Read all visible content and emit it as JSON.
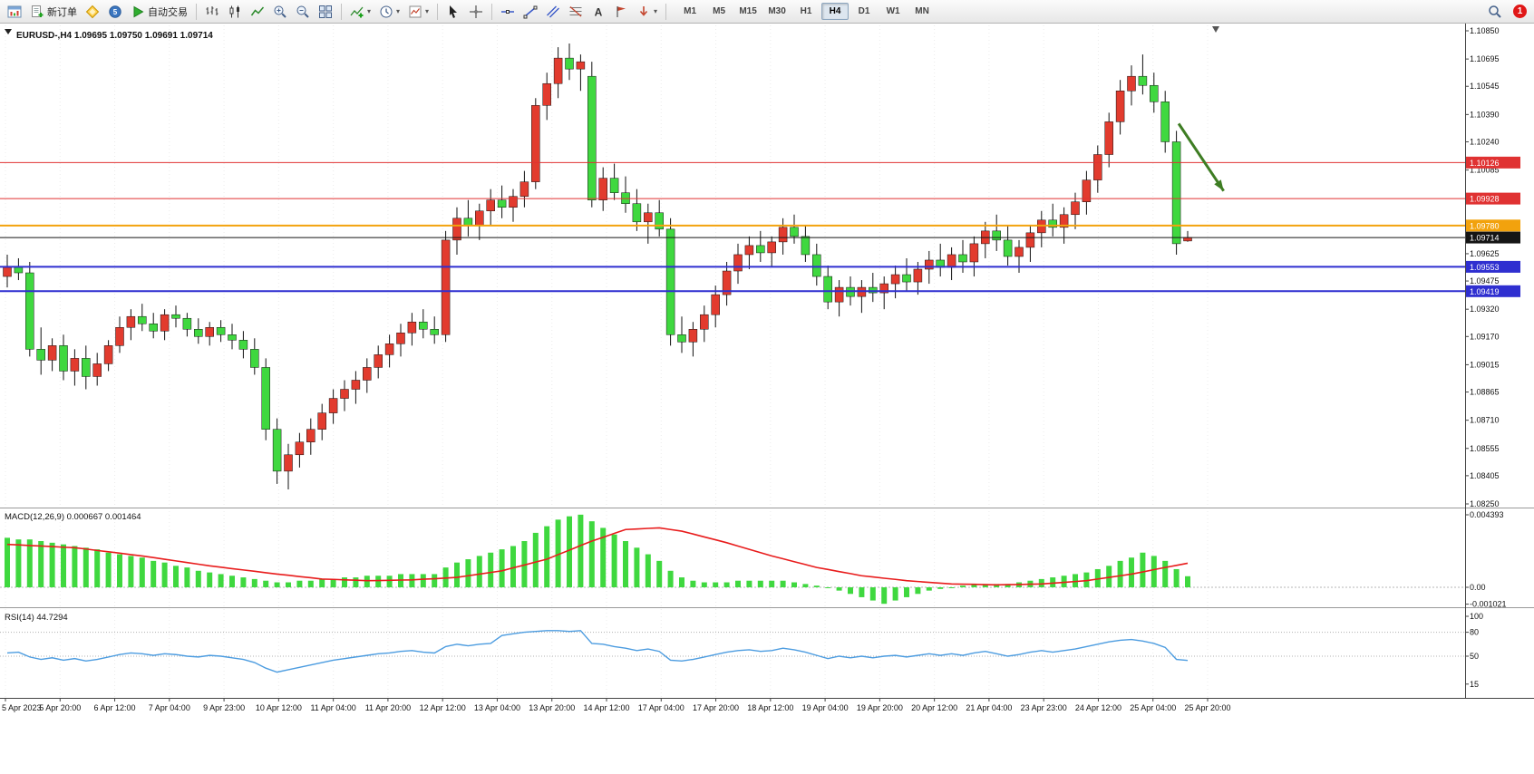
{
  "toolbar": {
    "new_order_label": "新订单",
    "autotrading_label": "自动交易",
    "timeframes": [
      "M1",
      "M5",
      "M15",
      "M30",
      "H1",
      "H4",
      "D1",
      "W1",
      "MN"
    ],
    "active_timeframe": "H4",
    "notification_count": "1"
  },
  "chart_data": {
    "type": "candlestick",
    "title": {
      "symbol_timeframe": "EURUSD-,H4",
      "ohlc": [
        "1.09695",
        "1.09750",
        "1.09691",
        "1.09714"
      ]
    },
    "colors": {
      "up": "#e23b2e",
      "down": "#3fd83f"
    },
    "y_axis": {
      "min": 1.0825,
      "max": 1.1085,
      "tick_labels": [
        "1.10850",
        "1.10695",
        "1.10545",
        "1.10390",
        "1.10240",
        "1.10085",
        "1.09935",
        "1.09780",
        "1.09625",
        "1.09475",
        "1.09320",
        "1.09170",
        "1.09015",
        "1.08865",
        "1.08710",
        "1.08555",
        "1.08405",
        "1.08250"
      ]
    },
    "x_labels": [
      "5 Apr 2023",
      "5 Apr 20:00",
      "6 Apr 12:00",
      "7 Apr 04:00",
      "9 Apr 23:00",
      "10 Apr 12:00",
      "11 Apr 04:00",
      "11 Apr 20:00",
      "12 Apr 12:00",
      "13 Apr 04:00",
      "13 Apr 20:00",
      "14 Apr 12:00",
      "17 Apr 04:00",
      "17 Apr 20:00",
      "18 Apr 12:00",
      "19 Apr 04:00",
      "19 Apr 20:00",
      "20 Apr 12:00",
      "21 Apr 04:00",
      "23 Apr 23:00",
      "24 Apr 12:00",
      "25 Apr 04:00",
      "25 Apr 20:00"
    ],
    "hlines": [
      {
        "label": "1.10126",
        "price": 1.10126,
        "color": "#e03232",
        "width": 1,
        "name": "resistance-line-1"
      },
      {
        "label": "1.09928",
        "price": 1.09928,
        "color": "#e03232",
        "width": 1,
        "name": "resistance-line-2"
      },
      {
        "label": "1.09780",
        "price": 1.0978,
        "color": "#f2a20d",
        "width": 2,
        "name": "pivot-line"
      },
      {
        "label": "1.09714",
        "price": 1.09714,
        "color": "#151515",
        "width": 1,
        "name": "current-price-line"
      },
      {
        "label": "1.09553",
        "price": 1.09553,
        "color": "#2f2fd0",
        "width": 2,
        "name": "support-line-1"
      },
      {
        "label": "1.09419",
        "price": 1.09419,
        "color": "#2f2fd0",
        "width": 2,
        "name": "support-line-2"
      }
    ],
    "candles": [
      [
        1.095,
        1.0962,
        1.0944,
        1.0955
      ],
      [
        1.0955,
        1.096,
        1.0948,
        1.0952
      ],
      [
        1.0952,
        1.0958,
        1.0906,
        1.091
      ],
      [
        1.091,
        1.0922,
        1.0896,
        1.0904
      ],
      [
        1.0904,
        1.0916,
        1.0898,
        1.0912
      ],
      [
        1.0912,
        1.0918,
        1.0893,
        1.0898
      ],
      [
        1.0898,
        1.091,
        1.089,
        1.0905
      ],
      [
        1.0905,
        1.0912,
        1.0888,
        1.0895
      ],
      [
        1.0895,
        1.0908,
        1.089,
        1.0902
      ],
      [
        1.0902,
        1.0915,
        1.0898,
        1.0912
      ],
      [
        1.0912,
        1.0928,
        1.0908,
        1.0922
      ],
      [
        1.0922,
        1.0932,
        1.0915,
        1.0928
      ],
      [
        1.0928,
        1.0935,
        1.092,
        1.0924
      ],
      [
        1.0924,
        1.093,
        1.0916,
        1.092
      ],
      [
        1.092,
        1.0932,
        1.0915,
        1.0929
      ],
      [
        1.0929,
        1.0934,
        1.0922,
        1.0927
      ],
      [
        1.0927,
        1.093,
        1.0917,
        1.0921
      ],
      [
        1.0921,
        1.0927,
        1.0913,
        1.0917
      ],
      [
        1.0917,
        1.0925,
        1.0912,
        1.0922
      ],
      [
        1.0922,
        1.0926,
        1.0914,
        1.0918
      ],
      [
        1.0918,
        1.0924,
        1.091,
        1.0915
      ],
      [
        1.0915,
        1.092,
        1.0905,
        1.091
      ],
      [
        1.091,
        1.0916,
        1.0896,
        1.09
      ],
      [
        1.09,
        1.0905,
        1.086,
        1.0866
      ],
      [
        1.0866,
        1.0872,
        1.0836,
        1.0843
      ],
      [
        1.0843,
        1.0858,
        1.0833,
        1.0852
      ],
      [
        1.0852,
        1.0864,
        1.0845,
        1.0859
      ],
      [
        1.0859,
        1.0872,
        1.0852,
        1.0866
      ],
      [
        1.0866,
        1.088,
        1.086,
        1.0875
      ],
      [
        1.0875,
        1.0888,
        1.0869,
        1.0883
      ],
      [
        1.0883,
        1.0893,
        1.0876,
        1.0888
      ],
      [
        1.0888,
        1.0898,
        1.088,
        1.0893
      ],
      [
        1.0893,
        1.0905,
        1.0886,
        1.09
      ],
      [
        1.09,
        1.0912,
        1.0894,
        1.0907
      ],
      [
        1.0907,
        1.0918,
        1.09,
        1.0913
      ],
      [
        1.0913,
        1.0924,
        1.0906,
        1.0919
      ],
      [
        1.0919,
        1.093,
        1.0912,
        1.0925
      ],
      [
        1.0925,
        1.0932,
        1.0916,
        1.0921
      ],
      [
        1.0921,
        1.0928,
        1.0913,
        1.0918
      ],
      [
        1.0918,
        1.0975,
        1.0914,
        1.097
      ],
      [
        1.097,
        1.0988,
        1.0962,
        1.0982
      ],
      [
        1.0982,
        1.0992,
        1.0972,
        1.0978
      ],
      [
        1.0978,
        1.099,
        1.097,
        1.0986
      ],
      [
        1.0986,
        1.0998,
        1.0978,
        1.0992
      ],
      [
        1.0992,
        1.1,
        1.0982,
        1.0988
      ],
      [
        1.0988,
        1.0998,
        1.098,
        1.0994
      ],
      [
        1.0994,
        1.1008,
        1.0988,
        1.1002
      ],
      [
        1.1002,
        1.1048,
        1.0998,
        1.1044
      ],
      [
        1.1044,
        1.1062,
        1.1036,
        1.1056
      ],
      [
        1.1056,
        1.1076,
        1.1048,
        1.107
      ],
      [
        1.107,
        1.1078,
        1.1058,
        1.1064
      ],
      [
        1.1064,
        1.1072,
        1.1052,
        1.1068
      ],
      [
        1.106,
        1.1068,
        1.0988,
        1.0992
      ],
      [
        1.0992,
        1.101,
        1.0986,
        1.1004
      ],
      [
        1.1004,
        1.1012,
        1.0992,
        1.0996
      ],
      [
        1.0996,
        1.1005,
        1.0985,
        1.099
      ],
      [
        1.099,
        1.0998,
        1.0975,
        1.098
      ],
      [
        1.098,
        1.099,
        1.0968,
        1.0985
      ],
      [
        1.0985,
        1.0992,
        1.0972,
        1.0976
      ],
      [
        1.0976,
        1.0982,
        1.0912,
        1.0918
      ],
      [
        1.0918,
        1.0928,
        1.0908,
        1.0914
      ],
      [
        1.0914,
        1.0925,
        1.0906,
        1.0921
      ],
      [
        1.0921,
        1.0934,
        1.0914,
        1.0929
      ],
      [
        1.0929,
        1.0945,
        1.0922,
        1.094
      ],
      [
        1.094,
        1.0958,
        1.0934,
        1.0953
      ],
      [
        1.0953,
        1.0968,
        1.0946,
        1.0962
      ],
      [
        1.0962,
        1.0972,
        1.0954,
        1.0967
      ],
      [
        1.0967,
        1.0975,
        1.0958,
        1.0963
      ],
      [
        1.0963,
        1.0972,
        1.0955,
        1.0969
      ],
      [
        1.0969,
        1.0982,
        1.0962,
        1.0977
      ],
      [
        1.0977,
        1.0984,
        1.0968,
        1.0972
      ],
      [
        1.0972,
        1.0978,
        1.0958,
        1.0962
      ],
      [
        1.0962,
        1.0968,
        1.0945,
        1.095
      ],
      [
        1.095,
        1.0956,
        1.0932,
        1.0936
      ],
      [
        1.0936,
        1.0948,
        1.0928,
        1.0944
      ],
      [
        1.0944,
        1.095,
        1.0934,
        1.0939
      ],
      [
        1.0939,
        1.0948,
        1.093,
        1.0944
      ],
      [
        1.0944,
        1.0952,
        1.0936,
        1.0941
      ],
      [
        1.0941,
        1.095,
        1.0932,
        1.0946
      ],
      [
        1.0946,
        1.0956,
        1.0938,
        1.0951
      ],
      [
        1.0951,
        1.096,
        1.0942,
        1.0947
      ],
      [
        1.0947,
        1.0958,
        1.094,
        1.0954
      ],
      [
        1.0954,
        1.0964,
        1.0946,
        1.0959
      ],
      [
        1.0959,
        1.0968,
        1.095,
        1.0955
      ],
      [
        1.0955,
        1.0966,
        1.0948,
        1.0962
      ],
      [
        1.0962,
        1.097,
        1.0952,
        1.0958
      ],
      [
        1.0958,
        1.0972,
        1.095,
        1.0968
      ],
      [
        1.0968,
        1.098,
        1.096,
        1.0975
      ],
      [
        1.0975,
        1.0984,
        1.0964,
        1.097
      ],
      [
        1.097,
        1.0978,
        1.0956,
        1.0961
      ],
      [
        1.0961,
        1.097,
        1.0952,
        1.0966
      ],
      [
        1.0966,
        1.0978,
        1.0958,
        1.0974
      ],
      [
        1.0974,
        1.0986,
        1.0966,
        1.0981
      ],
      [
        1.0981,
        1.099,
        1.0972,
        1.0977
      ],
      [
        1.0977,
        1.0988,
        1.0968,
        1.0984
      ],
      [
        1.0984,
        1.0996,
        1.0976,
        1.0991
      ],
      [
        1.0991,
        1.1008,
        1.0984,
        1.1003
      ],
      [
        1.1003,
        1.1022,
        1.0996,
        1.1017
      ],
      [
        1.1017,
        1.104,
        1.101,
        1.1035
      ],
      [
        1.1035,
        1.1058,
        1.1028,
        1.1052
      ],
      [
        1.1052,
        1.1066,
        1.1044,
        1.106
      ],
      [
        1.106,
        1.1072,
        1.105,
        1.1055
      ],
      [
        1.1055,
        1.1062,
        1.104,
        1.1046
      ],
      [
        1.1046,
        1.1052,
        1.1018,
        1.1024
      ],
      [
        1.1024,
        1.103,
        1.0962,
        1.0968
      ],
      [
        1.09695,
        1.0975,
        1.09691,
        1.09714
      ]
    ],
    "indicators": [
      {
        "name": "MACD",
        "label": "MACD(12,26,9) 0.000667 0.001464",
        "scale_max": 0.004393,
        "axis_labels": [
          {
            "v": 0.004393,
            "t": "0.004393"
          },
          {
            "v": 0,
            "t": "0.00"
          },
          {
            "v": -0.001021,
            "t": "-0.001021"
          }
        ],
        "histogram_color": "#3fd83f",
        "signal_color": "#e81c1c",
        "histogram": [
          0.003,
          0.0029,
          0.0029,
          0.0028,
          0.0027,
          0.0026,
          0.0025,
          0.0024,
          0.0023,
          0.0021,
          0.002,
          0.0019,
          0.0018,
          0.0016,
          0.0015,
          0.0013,
          0.0012,
          0.001,
          0.0009,
          0.0008,
          0.0007,
          0.0006,
          0.0005,
          0.0004,
          0.0003,
          0.0003,
          0.0004,
          0.0004,
          0.0005,
          0.0005,
          0.0006,
          0.0006,
          0.0007,
          0.0007,
          0.0007,
          0.0008,
          0.0008,
          0.0008,
          0.0008,
          0.0012,
          0.0015,
          0.0017,
          0.0019,
          0.0021,
          0.0023,
          0.0025,
          0.0028,
          0.0033,
          0.0037,
          0.0041,
          0.0043,
          0.0044,
          0.004,
          0.0036,
          0.0032,
          0.0028,
          0.0024,
          0.002,
          0.0016,
          0.001,
          0.0006,
          0.0004,
          0.0003,
          0.0003,
          0.0003,
          0.0004,
          0.0004,
          0.0004,
          0.0004,
          0.0004,
          0.0003,
          0.0002,
          0.0001,
          0.0,
          -0.0002,
          -0.0004,
          -0.0006,
          -0.0008,
          -0.001,
          -0.0008,
          -0.0006,
          -0.0004,
          -0.0002,
          -0.0001,
          0.0,
          0.0001,
          0.0002,
          0.0002,
          0.0002,
          0.0002,
          0.0003,
          0.0004,
          0.0005,
          0.0006,
          0.0007,
          0.0008,
          0.0009,
          0.0011,
          0.0013,
          0.0016,
          0.0018,
          0.0021,
          0.0019,
          0.0016,
          0.0011,
          0.00067
        ],
        "signal": [
          0.0026,
          0.00257,
          0.00253,
          0.0025,
          0.00247,
          0.00243,
          0.0024,
          0.00232,
          0.00223,
          0.00215,
          0.00207,
          0.00198,
          0.0019,
          0.0018,
          0.0017,
          0.0016,
          0.0015,
          0.0014,
          0.0013,
          0.00122,
          0.00113,
          0.00105,
          0.00097,
          0.00088,
          0.0008,
          0.00073,
          0.00065,
          0.00058,
          0.0005,
          0.00048,
          0.00045,
          0.00043,
          0.0004,
          0.00041,
          0.00042,
          0.00044,
          0.00045,
          0.00049,
          0.00052,
          0.00056,
          0.0006,
          0.0007,
          0.0008,
          0.0009,
          0.001,
          0.00118,
          0.00135,
          0.00153,
          0.0017,
          0.00198,
          0.00225,
          0.00253,
          0.0028,
          0.00303,
          0.00327,
          0.0035,
          0.00353,
          0.00357,
          0.0036,
          0.0035,
          0.0034,
          0.00323,
          0.00305,
          0.00288,
          0.0027,
          0.0025,
          0.0023,
          0.0021,
          0.0019,
          0.00173,
          0.00155,
          0.00138,
          0.0012,
          0.00108,
          0.00095,
          0.00083,
          0.0007,
          0.00063,
          0.00055,
          0.00048,
          0.0004,
          0.00035,
          0.0003,
          0.00025,
          0.0002,
          0.00019,
          0.00018,
          0.00016,
          0.00015,
          0.00016,
          0.00017,
          0.00019,
          0.0002,
          0.00025,
          0.0003,
          0.00035,
          0.0004,
          0.0005,
          0.0006,
          0.0007,
          0.0008,
          0.00093,
          0.00107,
          0.0012,
          0.00133,
          0.00146
        ]
      },
      {
        "name": "RSI",
        "label": "RSI(14) 44.7294",
        "color": "#4c9ce0",
        "levels": [
          80,
          50
        ],
        "axis_labels": [
          {
            "v": 100,
            "t": "100"
          },
          {
            "v": 80,
            "t": "80"
          },
          {
            "v": 50,
            "t": "50"
          },
          {
            "v": 15,
            "t": "15"
          }
        ],
        "values": [
          54,
          55,
          49,
          46,
          48,
          45,
          47,
          44,
          46,
          49,
          52,
          54,
          53,
          51,
          53,
          52,
          50,
          49,
          51,
          50,
          48,
          46,
          42,
          35,
          30,
          33,
          36,
          39,
          42,
          45,
          47,
          49,
          51,
          53,
          54,
          56,
          57,
          55,
          54,
          62,
          65,
          63,
          65,
          66,
          76,
          78,
          80,
          81,
          82,
          82,
          81,
          82,
          66,
          65,
          62,
          60,
          57,
          59,
          56,
          45,
          44,
          46,
          49,
          52,
          55,
          57,
          58,
          56,
          57,
          60,
          58,
          55,
          51,
          47,
          50,
          48,
          50,
          48,
          50,
          51,
          49,
          51,
          53,
          51,
          53,
          51,
          54,
          56,
          53,
          50,
          52,
          55,
          57,
          55,
          57,
          59,
          62,
          65,
          68,
          70,
          71,
          69,
          66,
          61,
          46,
          44.73
        ]
      }
    ],
    "annotations": [
      {
        "type": "arrow",
        "from_candle": 104.2,
        "from_price": 1.1034,
        "to_candle": 108.2,
        "to_price": 1.0997,
        "color": "#3e7d23",
        "width": 3
      }
    ]
  }
}
